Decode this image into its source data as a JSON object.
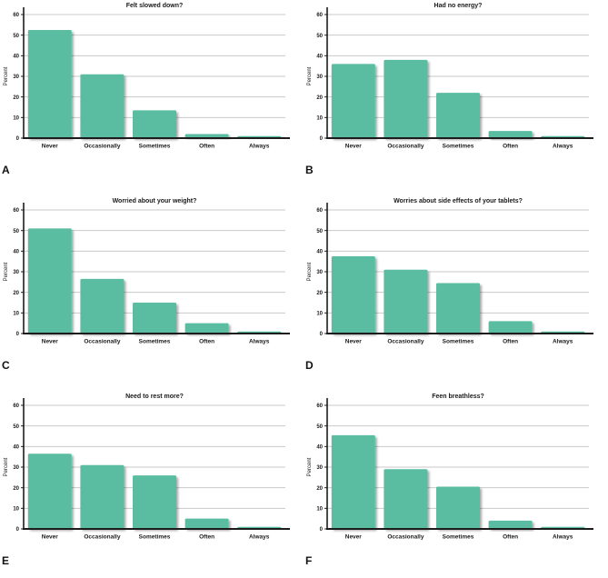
{
  "figure": {
    "ylabel": "Percent",
    "bar_color": "#5abda2",
    "axis_color": "#1c1c1c",
    "grid_color": "#c9c9c9",
    "categories": [
      "Never",
      "Occasionally",
      "Sometimes",
      "Often",
      "Always"
    ],
    "panel_letters": [
      "A",
      "B",
      "C",
      "D",
      "E",
      "F"
    ]
  },
  "chart_data": [
    {
      "type": "bar",
      "panel_label": "A",
      "title": "Felt slowed down?",
      "categories": [
        "Never",
        "Occasionally",
        "Sometimes",
        "Often",
        "Always"
      ],
      "values": [
        52.5,
        31,
        13.5,
        2,
        1
      ],
      "xlabel": "",
      "ylabel": "Percent",
      "ylim": [
        0,
        60
      ],
      "yticks": [
        0,
        10,
        20,
        30,
        40,
        50,
        60
      ],
      "grid": true,
      "legend": false
    },
    {
      "type": "bar",
      "panel_label": "B",
      "title": "Had no energy?",
      "categories": [
        "Never",
        "Occasionally",
        "Sometimes",
        "Often",
        "Always"
      ],
      "values": [
        36,
        38,
        22,
        3.5,
        1
      ],
      "xlabel": "",
      "ylabel": "Percent",
      "ylim": [
        0,
        60
      ],
      "yticks": [
        0,
        10,
        20,
        30,
        40,
        50,
        60
      ],
      "grid": true,
      "legend": false
    },
    {
      "type": "bar",
      "panel_label": "C",
      "title": "Worried about your weight?",
      "categories": [
        "Never",
        "Occasionally",
        "Sometimes",
        "Often",
        "Always"
      ],
      "values": [
        51,
        26.5,
        15,
        5,
        1
      ],
      "xlabel": "",
      "ylabel": "Percent",
      "ylim": [
        0,
        60
      ],
      "yticks": [
        0,
        10,
        20,
        30,
        40,
        50,
        60
      ],
      "grid": true,
      "legend": false
    },
    {
      "type": "bar",
      "panel_label": "D",
      "title": "Worries about side effects of your tablets?",
      "categories": [
        "Never",
        "Occasionally",
        "Sometimes",
        "Often",
        "Always"
      ],
      "values": [
        37.5,
        31,
        24.5,
        6,
        1
      ],
      "xlabel": "",
      "ylabel": "Percent",
      "ylim": [
        0,
        60
      ],
      "yticks": [
        0,
        10,
        20,
        30,
        40,
        50,
        60
      ],
      "grid": true,
      "legend": false
    },
    {
      "type": "bar",
      "panel_label": "E",
      "title": "Need to rest more?",
      "categories": [
        "Never",
        "Occasionally",
        "Sometimes",
        "Often",
        "Always"
      ],
      "values": [
        36.5,
        31,
        26,
        5,
        1
      ],
      "xlabel": "",
      "ylabel": "Percent",
      "ylim": [
        0,
        60
      ],
      "yticks": [
        0,
        10,
        20,
        30,
        40,
        50,
        60
      ],
      "grid": true,
      "legend": false
    },
    {
      "type": "bar",
      "panel_label": "F",
      "title": "Feen breathless?",
      "categories": [
        "Never",
        "Occasionally",
        "Sometimes",
        "Often",
        "Always"
      ],
      "values": [
        45.5,
        29,
        20.5,
        4,
        1
      ],
      "xlabel": "",
      "ylabel": "Percent",
      "ylim": [
        0,
        60
      ],
      "yticks": [
        0,
        10,
        20,
        30,
        40,
        50,
        60
      ],
      "grid": true,
      "legend": false
    }
  ]
}
